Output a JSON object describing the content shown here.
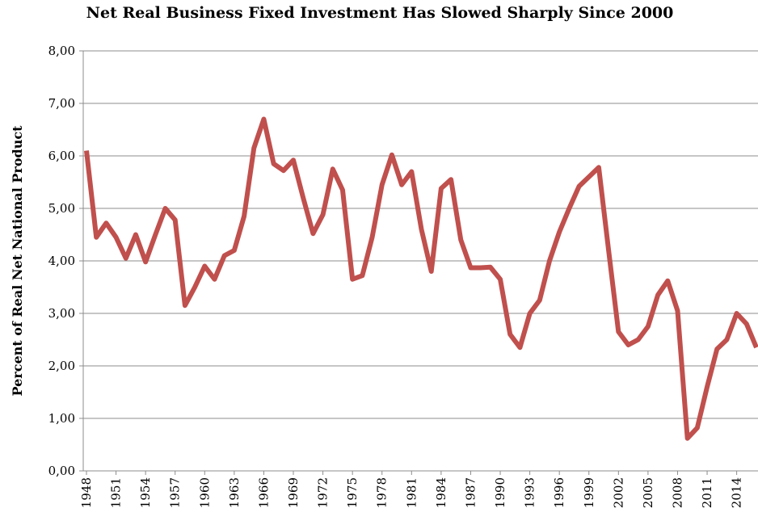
{
  "chart_data": {
    "type": "line",
    "title": "Net Real Business Fixed Investment Has Slowed Sharply Since 2000",
    "y_label": "Percent of Real Net National Product",
    "x": [
      1948,
      1949,
      1950,
      1951,
      1952,
      1953,
      1954,
      1955,
      1956,
      1957,
      1958,
      1959,
      1960,
      1961,
      1962,
      1963,
      1964,
      1965,
      1966,
      1967,
      1968,
      1969,
      1970,
      1971,
      1972,
      1973,
      1974,
      1975,
      1976,
      1977,
      1978,
      1979,
      1980,
      1981,
      1982,
      1983,
      1984,
      1985,
      1986,
      1987,
      1988,
      1989,
      1990,
      1991,
      1992,
      1993,
      1994,
      1995,
      1996,
      1997,
      1998,
      1999,
      2000,
      2001,
      2002,
      2003,
      2004,
      2005,
      2006,
      2007,
      2008,
      2009,
      2010,
      2011,
      2012,
      2013,
      2014,
      2015,
      2016
    ],
    "series": [
      {
        "name": "Net real business fixed investment",
        "color": "#c0504d",
        "values": [
          6.1,
          4.45,
          4.72,
          4.45,
          4.05,
          4.5,
          3.98,
          4.5,
          5.0,
          4.78,
          3.15,
          3.5,
          3.9,
          3.65,
          4.1,
          4.2,
          4.85,
          6.15,
          6.7,
          5.85,
          5.72,
          5.92,
          5.2,
          4.52,
          4.88,
          5.75,
          5.35,
          3.65,
          3.72,
          4.45,
          5.45,
          6.02,
          5.45,
          5.7,
          4.6,
          3.8,
          5.38,
          5.55,
          4.4,
          3.87,
          3.87,
          3.88,
          3.65,
          2.6,
          2.35,
          3.0,
          3.25,
          4.0,
          4.55,
          5.0,
          5.42,
          5.6,
          5.78,
          4.2,
          2.65,
          2.4,
          2.5,
          2.75,
          3.35,
          3.62,
          3.05,
          0.62,
          0.82,
          1.6,
          2.32,
          2.5,
          3.0,
          2.8,
          2.35
        ]
      }
    ],
    "xlim": [
      1948,
      2016
    ],
    "xticks": [
      1948,
      1951,
      1954,
      1957,
      1960,
      1963,
      1966,
      1969,
      1972,
      1975,
      1978,
      1981,
      1984,
      1987,
      1990,
      1993,
      1996,
      1999,
      2002,
      2005,
      2008,
      2011,
      2014
    ],
    "ylim": [
      0,
      8
    ],
    "yticks": [
      {
        "value": 0,
        "label": "0,00"
      },
      {
        "value": 1,
        "label": "1,00"
      },
      {
        "value": 2,
        "label": "2,00"
      },
      {
        "value": 3,
        "label": "3,00"
      },
      {
        "value": 4,
        "label": "4,00"
      },
      {
        "value": 5,
        "label": "5,00"
      },
      {
        "value": 6,
        "label": "6,00"
      },
      {
        "value": 7,
        "label": "7,00"
      },
      {
        "value": 8,
        "label": "8,00"
      }
    ],
    "grid": true
  }
}
